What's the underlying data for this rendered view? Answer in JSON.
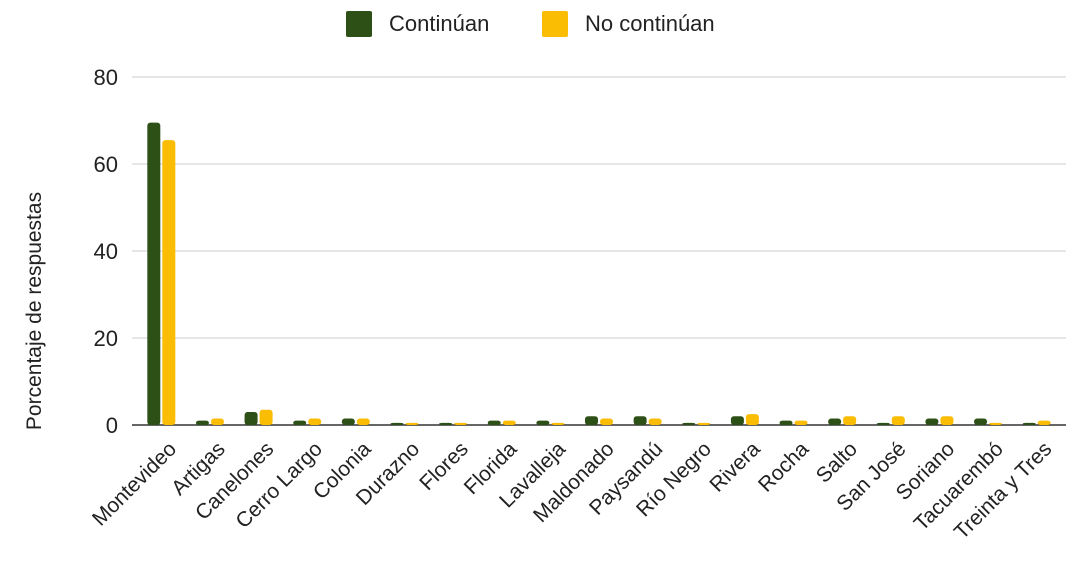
{
  "chart_data": {
    "type": "bar",
    "ylabel": "Porcentaje de respuestas",
    "xlabel": "",
    "ylim": [
      0,
      80
    ],
    "yticks": [
      0,
      20,
      40,
      60,
      80
    ],
    "grid": true,
    "legend_position": "top",
    "categories": [
      "Montevideo",
      "Artigas",
      "Canelones",
      "Cerro Largo",
      "Colonia",
      "Durazno",
      "Flores",
      "Florida",
      "Lavalleja",
      "Maldonado",
      "Paysandú",
      "Río Negro",
      "Rivera",
      "Rocha",
      "Salto",
      "San José",
      "Soriano",
      "Tacuarembó",
      "Treinta y Tres"
    ],
    "series": [
      {
        "name": "Continúan",
        "color": "#2d5016",
        "values": [
          69.5,
          1.0,
          3.0,
          1.0,
          1.5,
          0.5,
          0.5,
          1.0,
          1.0,
          2.0,
          2.0,
          0.5,
          2.0,
          1.0,
          1.5,
          0.5,
          1.5,
          1.5,
          0.5
        ]
      },
      {
        "name": "No continúan",
        "color": "#fbbc04",
        "values": [
          65.5,
          1.5,
          3.5,
          1.5,
          1.5,
          0.5,
          0.5,
          1.0,
          0.5,
          1.5,
          1.5,
          0.5,
          2.5,
          1.0,
          2.0,
          2.0,
          2.0,
          0.5,
          1.0
        ]
      }
    ]
  }
}
